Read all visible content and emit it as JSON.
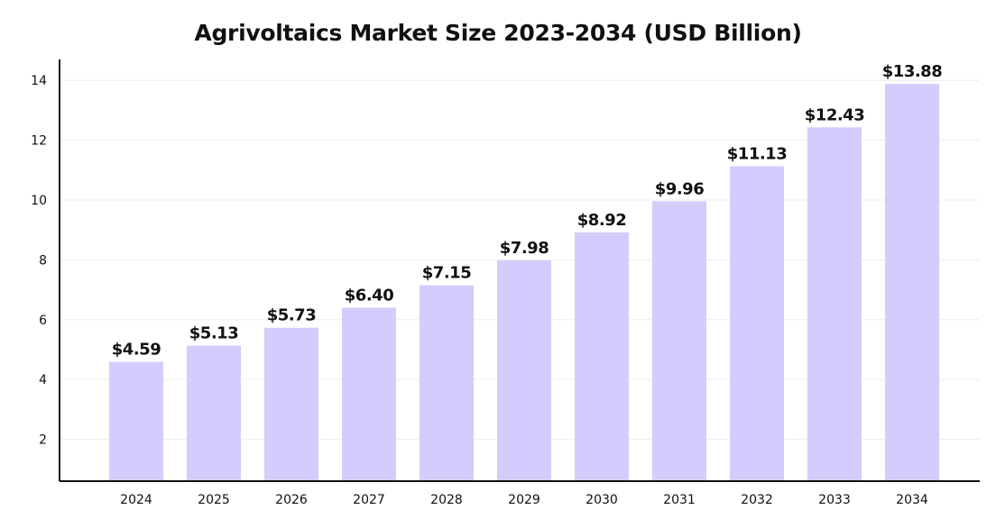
{
  "chart_data": {
    "type": "bar",
    "title": "Agrivoltaics Market Size 2023-2034 (USD Billion)",
    "xlabel": "",
    "ylabel": "",
    "categories": [
      "2024",
      "2025",
      "2026",
      "2027",
      "2028",
      "2029",
      "2030",
      "2031",
      "2032",
      "2033",
      "2034"
    ],
    "values": [
      4.59,
      5.13,
      5.73,
      6.4,
      7.15,
      7.98,
      8.92,
      9.96,
      11.13,
      12.43,
      13.88
    ],
    "value_labels": [
      "$4.59",
      "$5.13",
      "$5.73",
      "$6.40",
      "$7.15",
      "$7.98",
      "$8.92",
      "$9.96",
      "$11.13",
      "$12.43",
      "$13.88"
    ],
    "y_ticks": [
      2,
      4,
      6,
      8,
      10,
      12,
      14
    ],
    "ylim": [
      0.6,
      14.7
    ],
    "grid": true,
    "legend": "none",
    "colors": {
      "bar": "#d6cbfd",
      "grid": "#eeeeee",
      "axis": "#111111",
      "text": "#111111"
    }
  }
}
